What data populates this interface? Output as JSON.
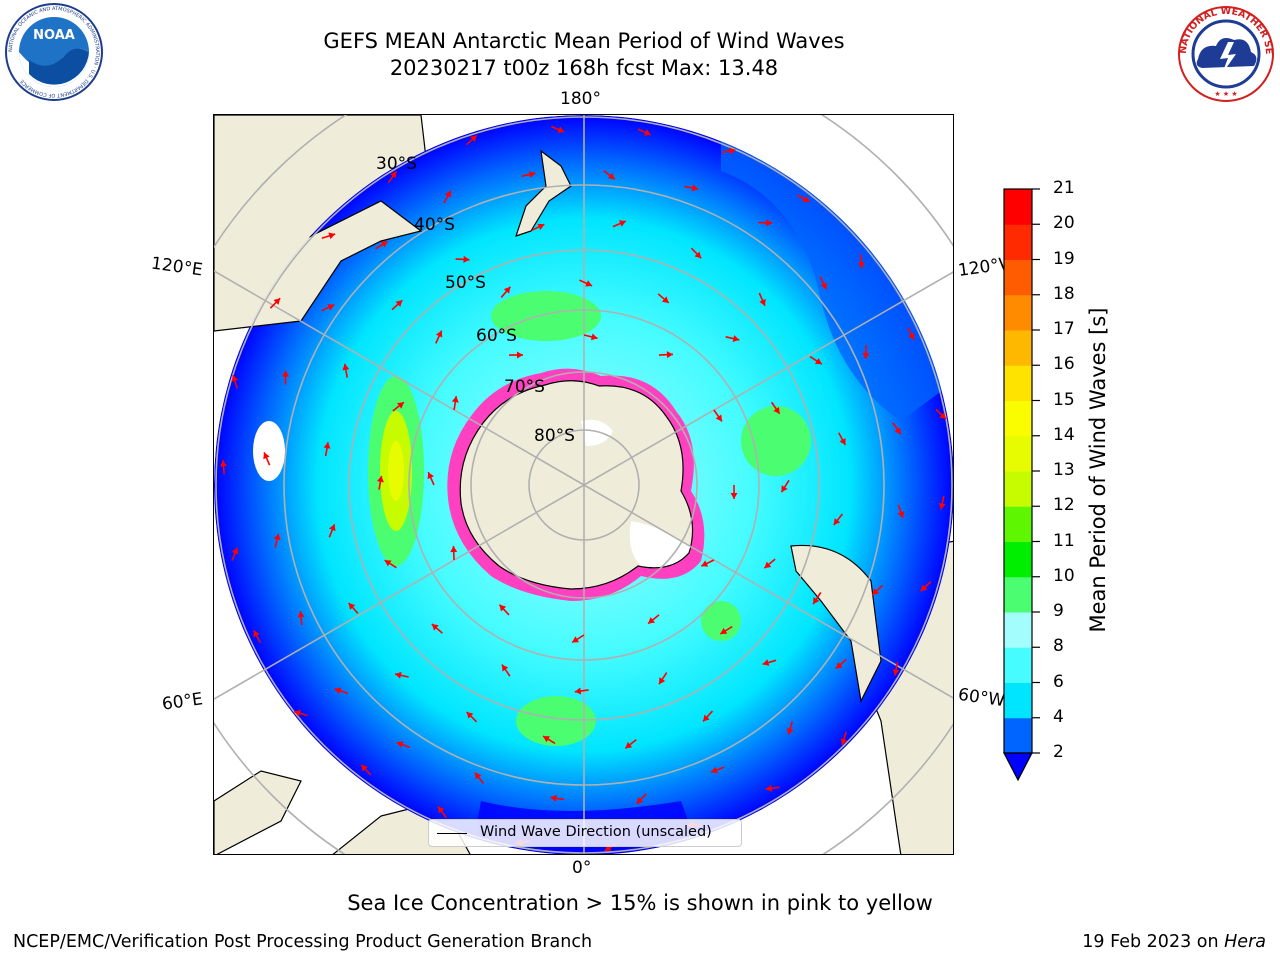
{
  "header": {
    "title_line1": "GEFS MEAN Antarctic Mean Period of Wind Waves",
    "title_line2": "20230217 t00z 168h fcst   Max: 13.48"
  },
  "logos": {
    "left": {
      "name": "noaa-logo",
      "text": "NOAA",
      "ring_text": "NATIONAL OCEANIC AND ATMOSPHERIC ADMINISTRATION · U.S. DEPARTMENT OF COMMERCE"
    },
    "right": {
      "name": "nws-logo",
      "ring_text": "NATIONAL WEATHER SERVICE"
    }
  },
  "map": {
    "projection": "south-polar-stereographic",
    "longitude_labels": {
      "top": "180°",
      "bottom": "0°",
      "upper_left": "120°E",
      "upper_right": "120°W",
      "lower_left": "60°E",
      "lower_right": "60°W"
    },
    "latitude_labels": [
      "30°S",
      "40°S",
      "50°S",
      "60°S",
      "70°S",
      "80°S"
    ],
    "legend_label": "Wind Wave Direction (unscaled)",
    "arrow_color": "#ff0000",
    "land_color": "#efedda"
  },
  "colorbar": {
    "title": "Mean Period of Wind Waves [s]",
    "ticks": [
      "2",
      "4",
      "6",
      "8",
      "9",
      "10",
      "11",
      "12",
      "13",
      "14",
      "15",
      "16",
      "17",
      "18",
      "19",
      "20",
      "21"
    ],
    "bin_colors": [
      "#0065ff",
      "#00e5ff",
      "#47fcff",
      "#a4fdfd",
      "#4bfd71",
      "#00ef00",
      "#5ef600",
      "#c6fb00",
      "#e7fc00",
      "#fafd00",
      "#fee300",
      "#ffb800",
      "#ff8c00",
      "#ff5b00",
      "#ff2a00",
      "#ff0000"
    ],
    "under_color": "#0000ff"
  },
  "footer": {
    "note": "Sea Ice Concentration > 15% is shown in pink to yellow",
    "credit": "NCEP/EMC/Verification Post Processing Product Generation Branch",
    "date_prefix": "19 Feb 2023 on ",
    "date_host": "Hera"
  }
}
